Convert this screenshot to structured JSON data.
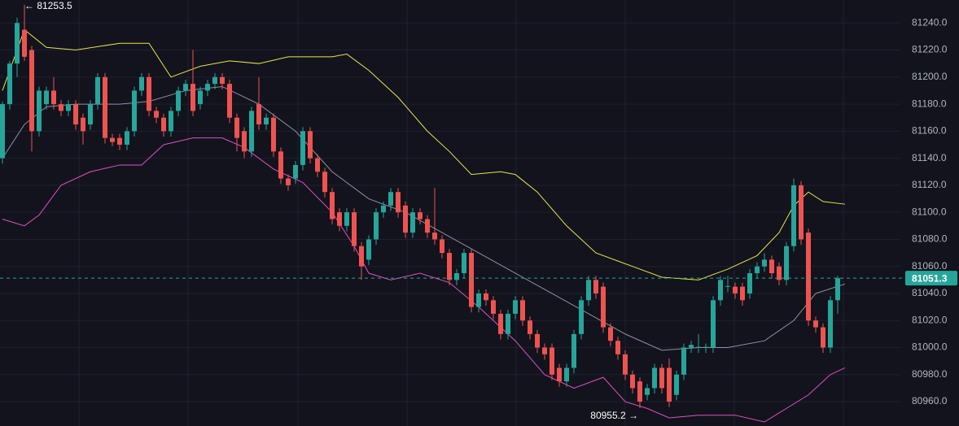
{
  "chart_data": {
    "type": "candlestick",
    "ylim": [
      80942,
      81257
    ],
    "yticks": [
      {
        "value": 80960,
        "label": "80960.0"
      },
      {
        "value": 80980,
        "label": "80980.0"
      },
      {
        "value": 81000,
        "label": "81000.0"
      },
      {
        "value": 81020,
        "label": "81020.0"
      },
      {
        "value": 81040,
        "label": "81040.0"
      },
      {
        "value": 81060,
        "label": "81060.0"
      },
      {
        "value": 81080,
        "label": "81080.0"
      },
      {
        "value": 81100,
        "label": "81100.0"
      },
      {
        "value": 81120,
        "label": "81120.0"
      },
      {
        "value": 81140,
        "label": "81140.0"
      },
      {
        "value": 81160,
        "label": "81160.0"
      },
      {
        "value": 81180,
        "label": "81180.0"
      },
      {
        "value": 81200,
        "label": "81200.0"
      },
      {
        "value": 81220,
        "label": "81220.0"
      },
      {
        "value": 81240,
        "label": "81240.0"
      }
    ],
    "grid": true,
    "up_color": "#26a69a",
    "down_color": "#ef5350",
    "candles": [
      [
        81140,
        81182,
        81136,
        81180
      ],
      [
        81180,
        81212,
        81176,
        81210
      ],
      [
        81210,
        81244,
        81200,
        81240
      ],
      [
        81235,
        81253.5,
        81212,
        81215
      ],
      [
        81220,
        81223,
        81145,
        81160
      ],
      [
        81160,
        81193,
        81156,
        81190
      ],
      [
        81180,
        81193,
        81176,
        81190
      ],
      [
        81190,
        81200,
        81176,
        81180
      ],
      [
        81180,
        81183,
        81171,
        81175
      ],
      [
        81175,
        81183,
        81171,
        81180
      ],
      [
        81180,
        81183,
        81161,
        81165
      ],
      [
        81170,
        81173,
        81150,
        81160
      ],
      [
        81165,
        81183,
        81161,
        81180
      ],
      [
        81180,
        81203,
        81176,
        81200
      ],
      [
        81200,
        81203,
        81151,
        81155
      ],
      [
        81155,
        81158,
        81149,
        81152
      ],
      [
        81155,
        81158,
        81146,
        81150
      ],
      [
        81150,
        81163,
        81146,
        81160
      ],
      [
        81160,
        81193,
        81156,
        81190
      ],
      [
        81190,
        81203,
        81186,
        81200
      ],
      [
        81200,
        81203,
        81171,
        81175
      ],
      [
        81175,
        81178,
        81166,
        81170
      ],
      [
        81170,
        81173,
        81156,
        81160
      ],
      [
        81160,
        81178,
        81156,
        81175
      ],
      [
        81175,
        81193,
        81171,
        81190
      ],
      [
        81190,
        81198,
        81186,
        81195
      ],
      [
        81195,
        81220,
        81171,
        81175
      ],
      [
        81180,
        81193,
        81176,
        81190
      ],
      [
        81190,
        81198,
        81186,
        81195
      ],
      [
        81195,
        81203,
        81191,
        81200
      ],
      [
        81200,
        81203,
        81191,
        81195
      ],
      [
        81195,
        81198,
        81166,
        81170
      ],
      [
        81170,
        81173,
        81145,
        81155
      ],
      [
        81160,
        81163,
        81140,
        81145
      ],
      [
        81145,
        81178,
        81141,
        81175
      ],
      [
        81180,
        81200,
        81161,
        81165
      ],
      [
        81165,
        81173,
        81161,
        81170
      ],
      [
        81170,
        81173,
        81141,
        81145
      ],
      [
        81145,
        81148,
        81121,
        81125
      ],
      [
        81125,
        81128,
        81116,
        81120
      ],
      [
        81125,
        81138,
        81121,
        81135
      ],
      [
        81135,
        81163,
        81131,
        81160
      ],
      [
        81160,
        81163,
        81136,
        81140
      ],
      [
        81140,
        81143,
        81126,
        81130
      ],
      [
        81130,
        81133,
        81111,
        81115
      ],
      [
        81115,
        81118,
        81091,
        81095
      ],
      [
        81100,
        81103,
        81086,
        81090
      ],
      [
        81090,
        81103,
        81086,
        81100
      ],
      [
        81100,
        81103,
        81071,
        81075
      ],
      [
        81075,
        81078,
        81050,
        81060
      ],
      [
        81065,
        81083,
        81061,
        81080
      ],
      [
        81080,
        81103,
        81076,
        81100
      ],
      [
        81100,
        81108,
        81096,
        81105
      ],
      [
        81105,
        81118,
        81101,
        81115
      ],
      [
        81115,
        81118,
        81096,
        81100
      ],
      [
        81105,
        81108,
        81081,
        81085
      ],
      [
        81085,
        81103,
        81081,
        81100
      ],
      [
        81100,
        81103,
        81091,
        81095
      ],
      [
        81095,
        81098,
        81081,
        81085
      ],
      [
        81085,
        81118,
        81076,
        81080
      ],
      [
        81080,
        81083,
        81066,
        81070
      ],
      [
        81070,
        81073,
        81046,
        81050
      ],
      [
        81050,
        81058,
        81046,
        81055
      ],
      [
        81055,
        81073,
        81051,
        81070
      ],
      [
        81070,
        81073,
        81026,
        81030
      ],
      [
        81030,
        81043,
        81026,
        81040
      ],
      [
        81040,
        81043,
        81031,
        81035
      ],
      [
        81035,
        81038,
        81021,
        81025
      ],
      [
        81025,
        81028,
        81006,
        81010
      ],
      [
        81010,
        81028,
        81006,
        81025
      ],
      [
        81025,
        81038,
        81021,
        81035
      ],
      [
        81035,
        81038,
        81016,
        81020
      ],
      [
        81020,
        81023,
        81006,
        81010
      ],
      [
        81010,
        81013,
        80996,
        81000
      ],
      [
        81000,
        81003,
        80991,
        80995
      ],
      [
        81000,
        81003,
        80976,
        80980
      ],
      [
        80985,
        80988,
        80971,
        80975
      ],
      [
        80975,
        80988,
        80971,
        80985
      ],
      [
        80985,
        81013,
        80981,
        81010
      ],
      [
        81010,
        81038,
        81006,
        81035
      ],
      [
        81035,
        81053,
        81031,
        81050
      ],
      [
        81050,
        81053,
        81036,
        81040
      ],
      [
        81045,
        81048,
        81011,
        81015
      ],
      [
        81015,
        81018,
        81001,
        81005
      ],
      [
        81005,
        81008,
        80991,
        80995
      ],
      [
        80995,
        80998,
        80976,
        80980
      ],
      [
        80980,
        80983,
        80966,
        80970
      ],
      [
        80975,
        80978,
        80955.2,
        80960
      ],
      [
        80965,
        80973,
        80961,
        80970
      ],
      [
        80970,
        80988,
        80966,
        80985
      ],
      [
        80985,
        80988,
        80966,
        80970
      ],
      [
        80985,
        80992,
        80956,
        80960
      ],
      [
        80965,
        80983,
        80961,
        80980
      ],
      [
        80980,
        81003,
        80976,
        81000
      ],
      [
        81000,
        81005,
        80996,
        81002
      ],
      [
        81000,
        81010,
        80996,
        81000.5
      ],
      [
        81000,
        81003,
        80996,
        81000.5
      ],
      [
        81000,
        81038,
        80996,
        81035
      ],
      [
        81035,
        81053,
        81031,
        81050
      ],
      [
        81045,
        81053,
        81041,
        81045.5
      ],
      [
        81045,
        81048,
        81036,
        81040
      ],
      [
        81045,
        81048,
        81031,
        81035
      ],
      [
        81040,
        81058,
        81036,
        81055
      ],
      [
        81055,
        81063,
        81051,
        81060
      ],
      [
        81060,
        81070,
        81056,
        81065
      ],
      [
        81065,
        81068,
        81051,
        81055
      ],
      [
        81060,
        81063,
        81046,
        81050
      ],
      [
        81050,
        81078,
        81046,
        81075
      ],
      [
        81075,
        81125,
        81071,
        81120
      ],
      [
        81120,
        81123,
        81076,
        81080
      ],
      [
        81085,
        81088,
        81016,
        81020
      ],
      [
        81020,
        81023,
        81011,
        81015
      ],
      [
        81015,
        81018,
        80996,
        81000
      ],
      [
        81000,
        81038,
        80996,
        81035
      ],
      [
        81035,
        81053,
        81025,
        81051.3
      ]
    ],
    "bands": [
      {
        "color": "#e8e64a",
        "x": [
          0,
          3,
          6,
          10,
          16,
          20,
          23,
          27,
          31,
          35,
          39,
          45,
          47,
          50,
          54,
          58,
          61,
          64,
          68,
          70,
          73,
          77,
          81,
          86,
          90,
          95,
          99,
          103,
          106,
          108,
          110,
          112,
          115
        ],
        "values": [
          81190,
          81235,
          81222,
          81220,
          81225,
          81225,
          81200,
          81208,
          81212,
          81210,
          81215,
          81215,
          81217,
          81205,
          81185,
          81160,
          81145,
          81128,
          81130,
          81128,
          81115,
          81090,
          81070,
          81060,
          81052,
          81050,
          81058,
          81068,
          81085,
          81105,
          81115,
          81108,
          81106
        ]
      },
      {
        "color": "#8f90a6",
        "x": [
          0,
          3,
          6,
          10,
          16,
          20,
          25,
          30,
          35,
          40,
          45,
          50,
          55,
          60,
          65,
          70,
          75,
          80,
          85,
          90,
          95,
          99,
          104,
          108,
          111,
          115
        ],
        "values": [
          81140,
          81165,
          81178,
          81180,
          81180,
          81182,
          81190,
          81193,
          81180,
          81160,
          81130,
          81110,
          81100,
          81085,
          81070,
          81055,
          81040,
          81025,
          81010,
          80998,
          81000,
          81000,
          81005,
          81020,
          81040,
          81047
        ]
      },
      {
        "color": "#e050c0",
        "x": [
          0,
          3,
          5,
          8,
          12,
          16,
          19,
          22,
          26,
          30,
          33,
          37,
          41,
          45,
          48,
          50,
          53,
          57,
          61,
          65,
          70,
          74,
          78,
          82,
          85,
          88,
          91,
          95,
          100,
          104,
          107,
          110,
          113,
          115
        ],
        "values": [
          81095,
          81090,
          81098,
          81120,
          81130,
          81135,
          81135,
          81150,
          81155,
          81155,
          81148,
          81132,
          81122,
          81100,
          81075,
          81055,
          81050,
          81055,
          81048,
          81030,
          81005,
          80980,
          80970,
          80978,
          80960,
          80955,
          80948,
          80950,
          80950,
          80945,
          80955,
          80965,
          80980,
          80985
        ]
      }
    ],
    "last_price": {
      "value": 81051.3,
      "label": "81051.3"
    },
    "annotations": [
      {
        "label": "← 81253.5",
        "value": 81253.5
      },
      {
        "label": "80955.2 →",
        "value": 80955.2
      }
    ]
  }
}
